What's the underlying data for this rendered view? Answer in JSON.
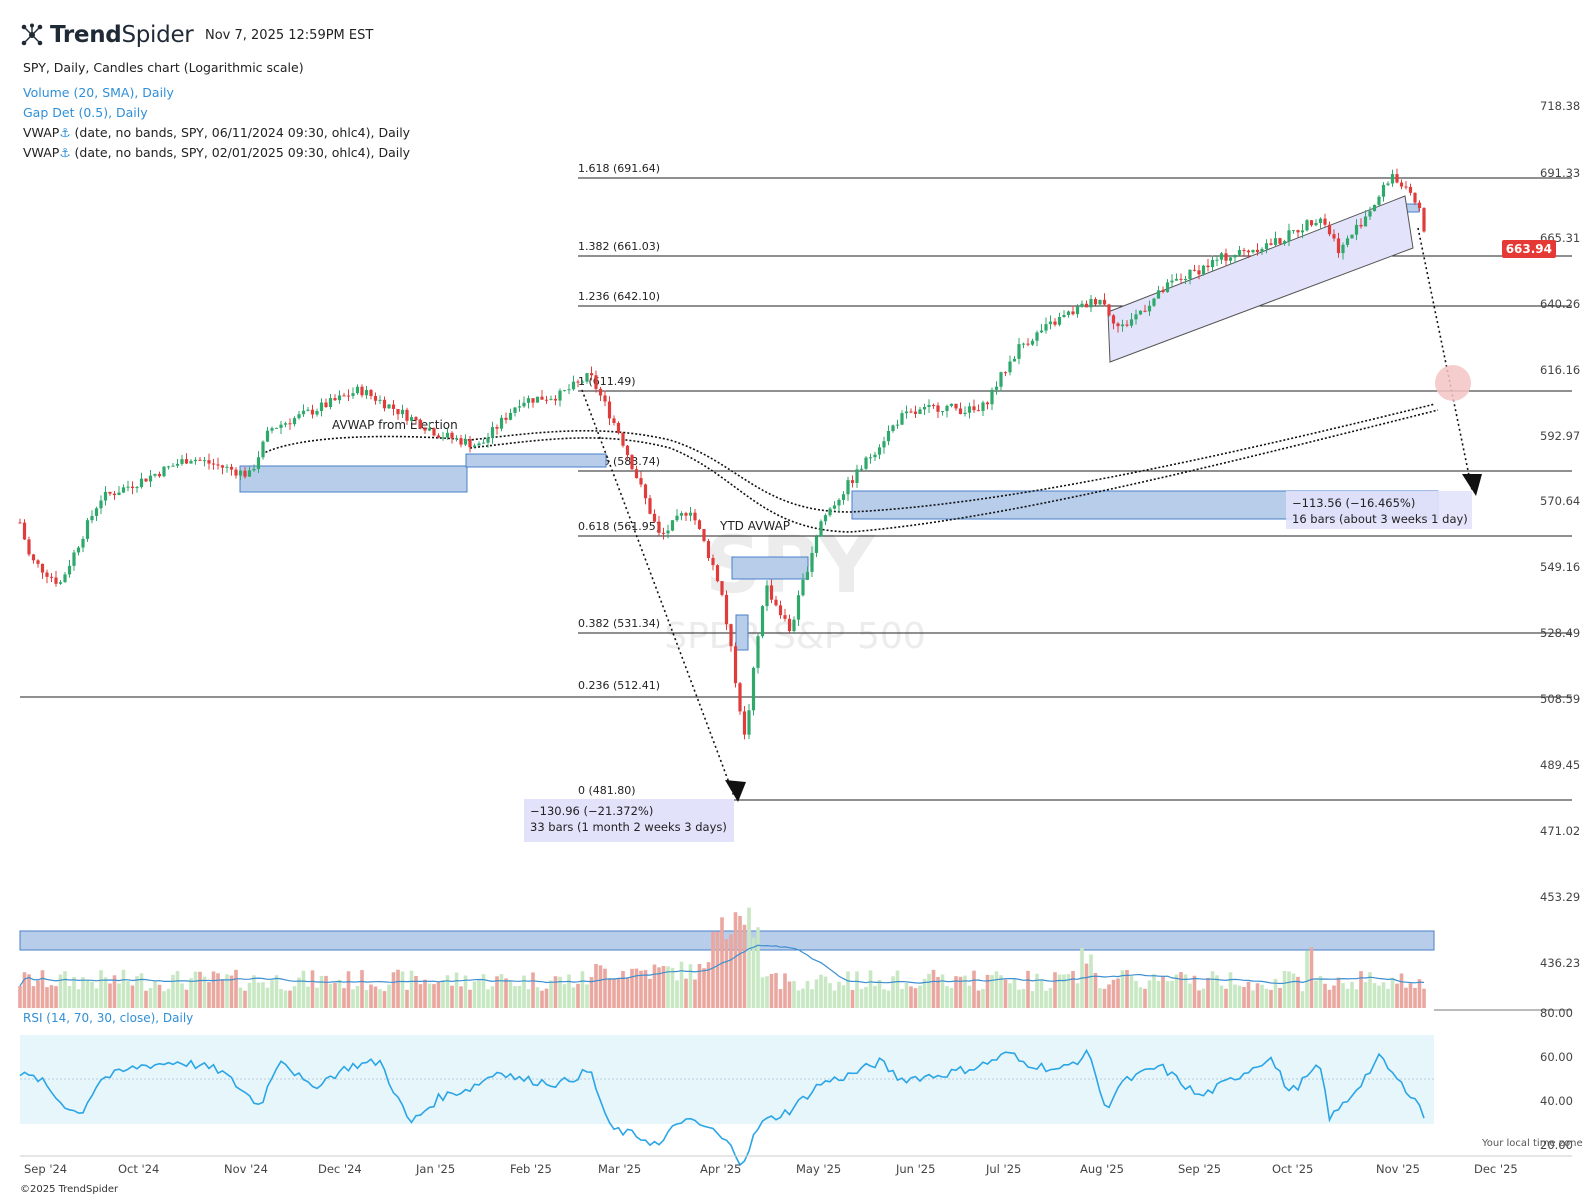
{
  "header": {
    "logo": {
      "bold": "Trend",
      "light": "Spider"
    },
    "timestamp": "Nov 7, 2025 12:59PM EST",
    "chart_title": "SPY, Daily, Candles chart (Logarithmic scale)"
  },
  "indicators": [
    {
      "text": "Volume (20, SMA), Daily",
      "color": "blue"
    },
    {
      "text": "Gap Det (0.5), Daily",
      "color": "blue"
    },
    {
      "prefix": "VWAP",
      "anchor": "⚓",
      "text": " (date, no bands, SPY, 06/11/2024 09:30, ohlc4), Daily",
      "color": "dark"
    },
    {
      "prefix": "VWAP",
      "anchor": "⚓",
      "text": " (date, no bands, SPY, 02/01/2025 09:30, ohlc4), Daily",
      "color": "dark"
    }
  ],
  "watermark": {
    "symbol": "SPY",
    "name": "SPDR S&P 500"
  },
  "last_price": "663.94",
  "rsi_label": "RSI (14, 70, 30, close), Daily",
  "annotations": {
    "avwap_election": "AVWAP from Election",
    "ytd_avwap": "YTD AVWAP",
    "drop1_line1": "−130.96 (−21.372%)",
    "drop1_line2": "33 bars (1 month 2 weeks 3 days)",
    "drop2_line1": "−113.56 (−16.465%)",
    "drop2_line2": "16 bars (about 3 weeks 1 day)"
  },
  "fib_levels": [
    {
      "label": "1.618 (691.64)"
    },
    {
      "label": "1.382 (661.03)"
    },
    {
      "label": "1.236 (642.10)"
    },
    {
      "label": "1 (611.49)"
    },
    {
      "label": "0.786 (583.74)"
    },
    {
      "label": "0.618 (561.95)"
    },
    {
      "label": "0.382 (531.34)"
    },
    {
      "label": "0.236 (512.41)"
    },
    {
      "label": "0 (481.80)"
    }
  ],
  "footer": {
    "copyright": "©2025 TrendSpider",
    "local_time": "Your local time zone"
  },
  "chart_data": [
    {
      "type": "line",
      "name": "SPY price (candles, approximated closing path)",
      "x": [
        "Sep '24",
        "Oct '24",
        "Nov '24",
        "Dec '24",
        "Jan '25",
        "Feb '25",
        "Mar '25",
        "Apr '25",
        "May '25",
        "Jun '25",
        "Jul '25",
        "Aug '25",
        "Sep '25",
        "Oct '25",
        "Nov '25",
        "Dec '25"
      ],
      "y_ticks": [
        "718.38",
        "691.33",
        "665.31",
        "640.26",
        "616.16",
        "592.97",
        "570.64",
        "549.16",
        "528.49",
        "508.59",
        "489.45",
        "471.02",
        "453.29",
        "436.23"
      ],
      "series": [
        {
          "values": [
            [
              0,
              560
            ],
            [
              10,
              548
            ],
            [
              40,
              540
            ],
            [
              80,
              568
            ],
            [
              120,
              574
            ],
            [
              170,
              582
            ],
            [
              230,
              576
            ],
            [
              250,
              592
            ],
            [
              290,
              598
            ],
            [
              340,
              606
            ],
            [
              380,
              598
            ],
            [
              420,
              590
            ],
            [
              460,
              586
            ],
            [
              500,
              602
            ],
            [
              540,
              604
            ],
            [
              570,
              611
            ],
            [
              600,
              590
            ],
            [
              640,
              555
            ],
            [
              670,
              565
            ],
            [
              700,
              540
            ],
            [
              725,
              492
            ],
            [
              745,
              540
            ],
            [
              770,
              525
            ],
            [
              800,
              560
            ],
            [
              840,
              578
            ],
            [
              880,
              596
            ],
            [
              920,
              600
            ],
            [
              960,
              598
            ],
            [
              1000,
              622
            ],
            [
              1040,
              632
            ],
            [
              1080,
              640
            ],
            [
              1100,
              628
            ],
            [
              1150,
              645
            ],
            [
              1200,
              655
            ],
            [
              1260,
              662
            ],
            [
              1300,
              672
            ],
            [
              1320,
              658
            ],
            [
              1360,
              680
            ],
            [
              1372,
              689
            ],
            [
              1385,
              682
            ],
            [
              1400,
              674
            ],
            [
              1405,
              662
            ]
          ]
        }
      ],
      "scale": "log",
      "grid": false
    },
    {
      "type": "bar",
      "name": "Volume (20, SMA)",
      "colors": {
        "up": "#c7e8c3",
        "down": "#e9a79f",
        "sma": "#3d8fd0"
      }
    },
    {
      "type": "line",
      "name": "RSI (14, 70, 30, close)",
      "y_ticks": [
        "80.00",
        "60.00",
        "40.00",
        "20.00"
      ],
      "band": [
        30,
        70
      ],
      "ylim": [
        20,
        80
      ],
      "series": [
        {
          "values": [
            [
              0,
              62
            ],
            [
              20,
              60
            ],
            [
              40,
              50
            ],
            [
              60,
              44
            ],
            [
              80,
              60
            ],
            [
              120,
              66
            ],
            [
              160,
              68
            ],
            [
              200,
              64
            ],
            [
              240,
              48
            ],
            [
              260,
              70
            ],
            [
              290,
              56
            ],
            [
              330,
              66
            ],
            [
              360,
              68
            ],
            [
              390,
              40
            ],
            [
              420,
              52
            ],
            [
              450,
              56
            ],
            [
              480,
              64
            ],
            [
              500,
              60
            ],
            [
              540,
              58
            ],
            [
              570,
              64
            ],
            [
              590,
              38
            ],
            [
              620,
              34
            ],
            [
              640,
              30
            ],
            [
              660,
              42
            ],
            [
              690,
              38
            ],
            [
              710,
              30
            ],
            [
              722,
              22
            ],
            [
              740,
              40
            ],
            [
              770,
              46
            ],
            [
              800,
              58
            ],
            [
              830,
              62
            ],
            [
              860,
              68
            ],
            [
              880,
              60
            ],
            [
              920,
              62
            ],
            [
              960,
              66
            ],
            [
              990,
              72
            ],
            [
              1000,
              68
            ],
            [
              1040,
              64
            ],
            [
              1070,
              72
            ],
            [
              1085,
              46
            ],
            [
              1100,
              58
            ],
            [
              1140,
              66
            ],
            [
              1180,
              52
            ],
            [
              1220,
              62
            ],
            [
              1250,
              70
            ],
            [
              1270,
              54
            ],
            [
              1300,
              66
            ],
            [
              1310,
              42
            ],
            [
              1330,
              52
            ],
            [
              1360,
              70
            ],
            [
              1380,
              58
            ],
            [
              1395,
              52
            ],
            [
              1405,
              42
            ]
          ]
        }
      ]
    }
  ]
}
